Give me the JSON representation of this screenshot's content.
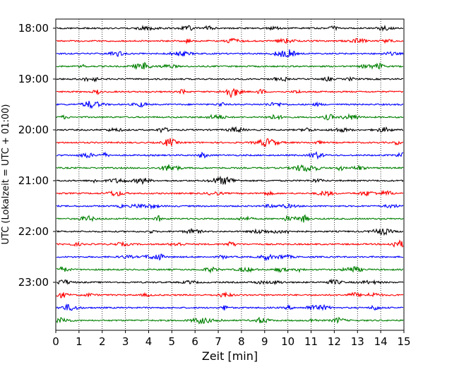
{
  "chart_data": {
    "type": "line",
    "title": "",
    "xlabel": "Zeit  [min]",
    "ylabel": "UTC (Lokalzeit = UTC + 01:00)",
    "xlim": [
      0,
      15
    ],
    "x_ticks": [
      0,
      1,
      2,
      3,
      4,
      5,
      6,
      7,
      8,
      9,
      10,
      11,
      12,
      13,
      14,
      15
    ],
    "x_tick_labels": [
      "0",
      "1",
      "2",
      "3",
      "4",
      "5",
      "6",
      "7",
      "8",
      "9",
      "10",
      "11",
      "12",
      "13",
      "14",
      "15"
    ],
    "y_tick_labels": [
      "18:00",
      "19:00",
      "20:00",
      "21:00",
      "22:00",
      "23:00"
    ],
    "trace_start_times": [
      "18:00",
      "18:15",
      "18:30",
      "18:45",
      "19:00",
      "19:15",
      "19:30",
      "19:45",
      "20:00",
      "20:15",
      "20:30",
      "20:45",
      "21:00",
      "21:15",
      "21:30",
      "21:45",
      "22:00",
      "22:15",
      "22:30",
      "22:45",
      "23:00",
      "23:15",
      "23:30",
      "23:45"
    ],
    "trace_colors": [
      "#000000",
      "#ff0000",
      "#0000ff",
      "#008000"
    ],
    "grid": {
      "x": true,
      "y": false,
      "style": "dotted"
    },
    "legend": "none"
  }
}
